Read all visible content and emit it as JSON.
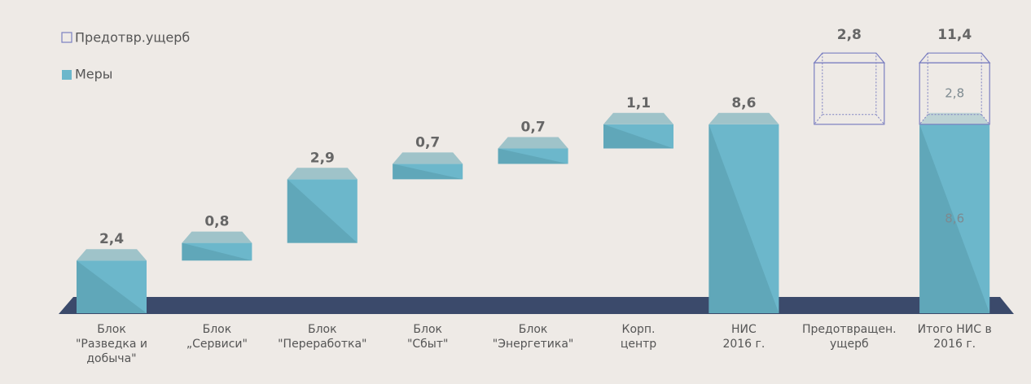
{
  "chart_data": {
    "type": "waterfall",
    "categories": [
      [
        "Блок",
        "\"Разведка и",
        "добыча\""
      ],
      [
        "Блок",
        "„Сервиси\""
      ],
      [
        "Блок",
        "\"Переработка\""
      ],
      [
        "Блок",
        "\"Сбыт\""
      ],
      [
        "Блок",
        "\"Энергетика\""
      ],
      [
        "Корп.",
        "центр"
      ],
      [
        "НИС",
        "2016 г."
      ],
      [
        "Предотвращен.",
        "ущерб"
      ],
      [
        "Итого НИС в",
        "2016 г."
      ]
    ],
    "bar_kinds": [
      "step",
      "step",
      "step",
      "step",
      "step",
      "step",
      "total",
      "step",
      "total"
    ],
    "series": [
      {
        "name": "Меры",
        "color": "#6cb7cb",
        "values": [
          2.4,
          0.8,
          2.9,
          0.7,
          0.7,
          1.1,
          8.6,
          null,
          8.6
        ],
        "value_labels": [
          "2,4",
          "0,8",
          "2,9",
          "0,7",
          "0,7",
          "1,1",
          "8,6",
          null,
          "8,6"
        ]
      },
      {
        "name": "Предотвр.ущерб",
        "color": "#7b7fc0",
        "values": [
          null,
          null,
          null,
          null,
          null,
          null,
          null,
          2.8,
          2.8
        ],
        "value_labels": [
          null,
          null,
          null,
          null,
          null,
          null,
          null,
          "2,8",
          "2,8"
        ]
      }
    ],
    "grand_total": {
      "value": 11.4,
      "label": "11,4"
    },
    "legend": "top-left"
  }
}
